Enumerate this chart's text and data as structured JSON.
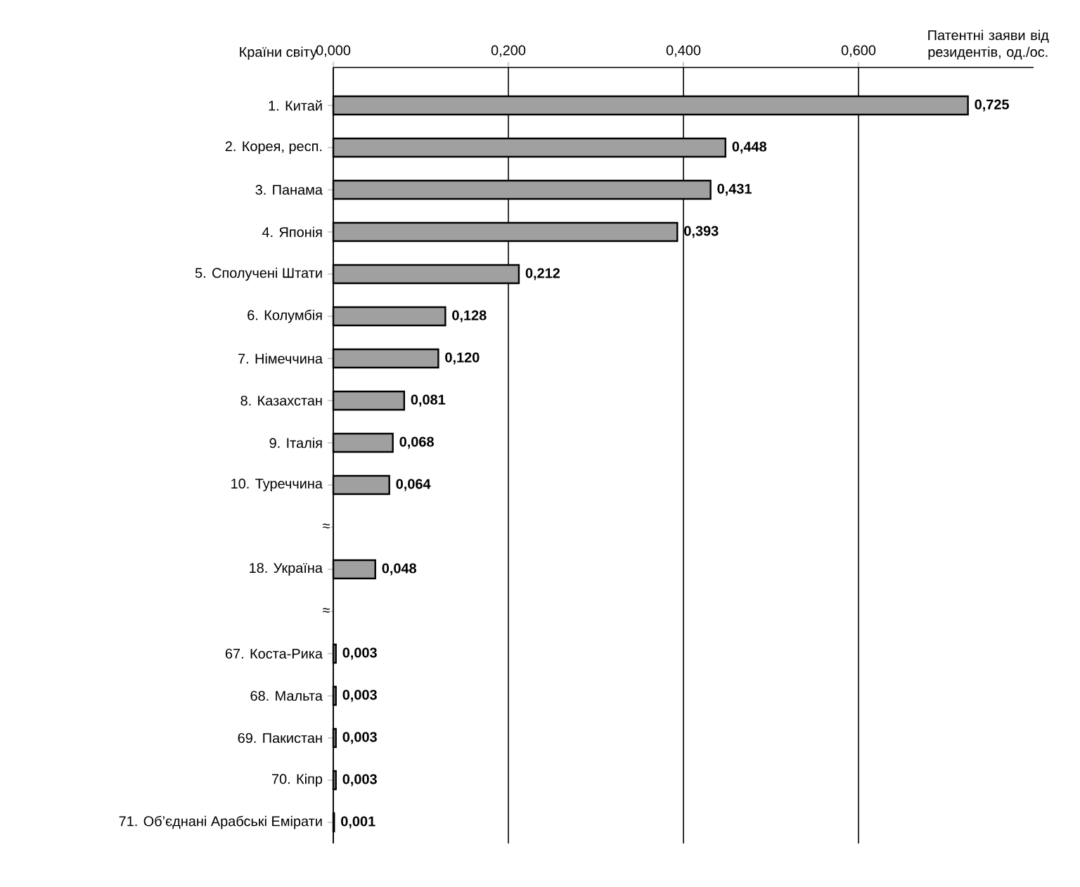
{
  "chart_data": {
    "type": "bar",
    "orientation": "horizontal",
    "ylabel": "Країни світу",
    "xlabel": "Патентні заяви від резидентів, од./ос.",
    "categories": [
      "1. Китай",
      "2. Корея, респ.",
      "3. Панама",
      "4. Японія",
      "5. Сполучені Штати",
      "6. Колумбія",
      "7. Німеччина",
      "8. Казахстан",
      "9. Італія",
      "10. Туреччина",
      null,
      "18. Україна",
      null,
      "67. Коста-Рика",
      "68. Мальта",
      "69. Пакистан",
      "70. Кіпр",
      "71. Об’єднані Арабські Емірати"
    ],
    "values": [
      0.725,
      0.448,
      0.431,
      0.393,
      0.212,
      0.128,
      0.12,
      0.081,
      0.068,
      0.064,
      null,
      0.048,
      null,
      0.003,
      0.003,
      0.003,
      0.003,
      0.001
    ],
    "value_labels": [
      "0,725",
      "0,448",
      "0,431",
      "0,393",
      "0,212",
      "0,128",
      "0,120",
      "0,081",
      "0,068",
      "0,064",
      null,
      "0,048",
      null,
      "0,003",
      "0,003",
      "0,003",
      "0,003",
      "0,001"
    ],
    "color": "#a0a0a0",
    "xlim": [
      0,
      0.8
    ],
    "xticks": [
      {
        "value": 0,
        "label": "0,000"
      },
      {
        "value": 0.2,
        "label": "0,200"
      },
      {
        "value": 0.4,
        "label": "0,400"
      },
      {
        "value": 0.6,
        "label": "0,600"
      }
    ],
    "grid": "x",
    "annotations": [
      "≈",
      "≈"
    ]
  }
}
